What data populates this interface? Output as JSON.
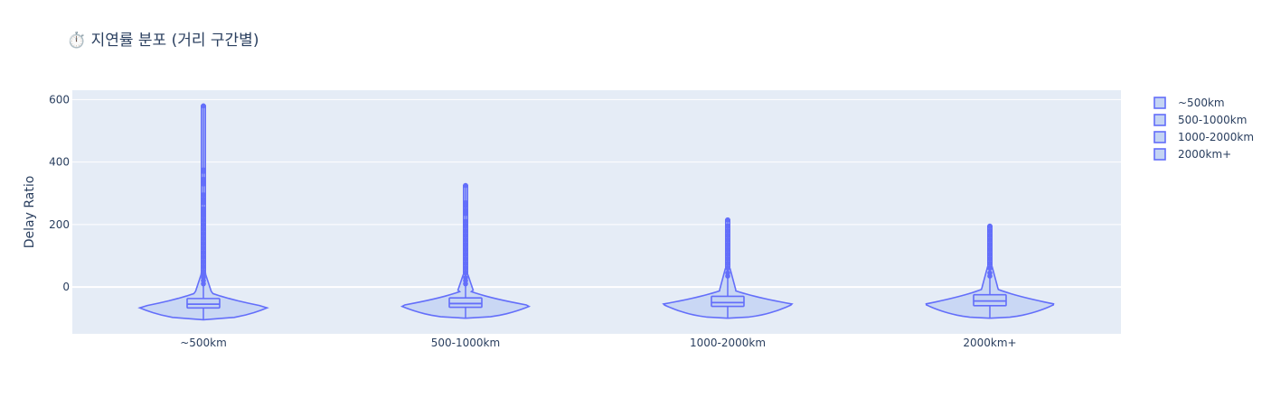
{
  "chart_data": {
    "type": "violin",
    "title": "⏱️ 지연률 분포 (거리 구간별)",
    "xlabel": "",
    "ylabel": "Delay Ratio",
    "ylim": [
      -150,
      630
    ],
    "yticks": [
      0,
      200,
      400,
      600
    ],
    "grid": true,
    "legend_position": "top-right",
    "colors": {
      "line": "#636efa",
      "fill": "#c4d4f3",
      "plot_bg": "#e5ecf6",
      "grid": "#ffffff"
    },
    "categories": [
      "~500km",
      "500-1000km",
      "1000-2000km",
      "2000km+"
    ],
    "series": [
      {
        "name": "~500km",
        "min": -105,
        "q1": -67,
        "median": -55,
        "q3": -37,
        "upper_fence": 0,
        "max": 580,
        "density_peak": -65,
        "outliers": [
          580,
          375,
          370,
          345,
          335,
          330,
          295,
          280,
          270,
          250,
          240,
          230,
          215,
          200,
          185,
          170,
          155,
          140,
          125,
          110,
          95,
          80,
          65,
          50,
          40,
          30,
          20,
          10
        ]
      },
      {
        "name": "500-1000km",
        "min": -100,
        "q1": -65,
        "median": -53,
        "q3": -35,
        "upper_fence": 0,
        "max": 325,
        "density_peak": -60,
        "outliers": [
          325,
          270,
          260,
          245,
          235,
          210,
          195,
          180,
          165,
          150,
          135,
          120,
          105,
          90,
          75,
          60,
          45,
          30,
          20,
          10
        ]
      },
      {
        "name": "1000-2000km",
        "min": -100,
        "q1": -62,
        "median": -50,
        "q3": -30,
        "upper_fence": 20,
        "max": 215,
        "density_peak": -55,
        "outliers": [
          215,
          195,
          180,
          165,
          150,
          135,
          120,
          105,
          90,
          75,
          60,
          45,
          35
        ]
      },
      {
        "name": "2000km+",
        "min": -100,
        "q1": -60,
        "median": -45,
        "q3": -25,
        "upper_fence": 25,
        "max": 195,
        "density_peak": -55,
        "outliers": [
          195,
          180,
          165,
          150,
          135,
          120,
          105,
          90,
          75,
          60,
          45,
          35
        ]
      }
    ]
  }
}
